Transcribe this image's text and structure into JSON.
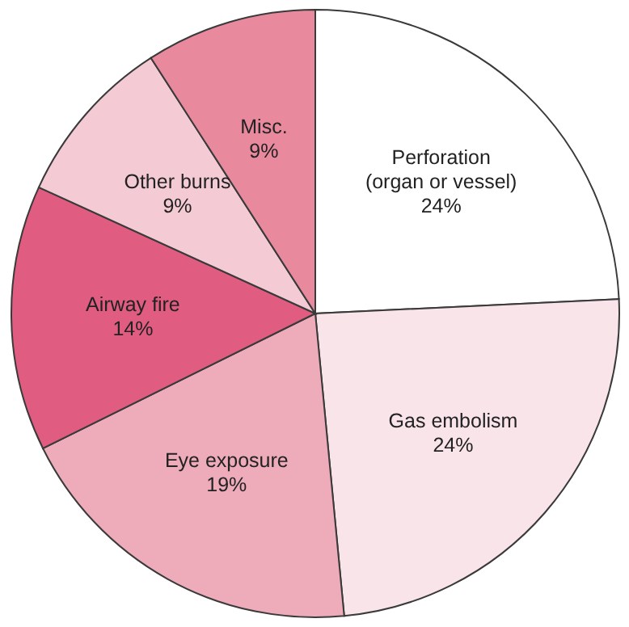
{
  "chart_data": {
    "type": "pie",
    "categories": [
      "Perforation (organ or vessel)",
      "Gas embolism",
      "Eye exposure",
      "Airway fire",
      "Other burns",
      "Misc."
    ],
    "values": [
      24,
      24,
      19,
      14,
      9,
      9
    ],
    "value_labels": [
      "24%",
      "24%",
      "19%",
      "14%",
      "9%",
      "9%"
    ],
    "colors": [
      "#ffffff",
      "#f9e4e9",
      "#eeabba",
      "#e05c80",
      "#f4cbd5",
      "#e8899d"
    ]
  }
}
